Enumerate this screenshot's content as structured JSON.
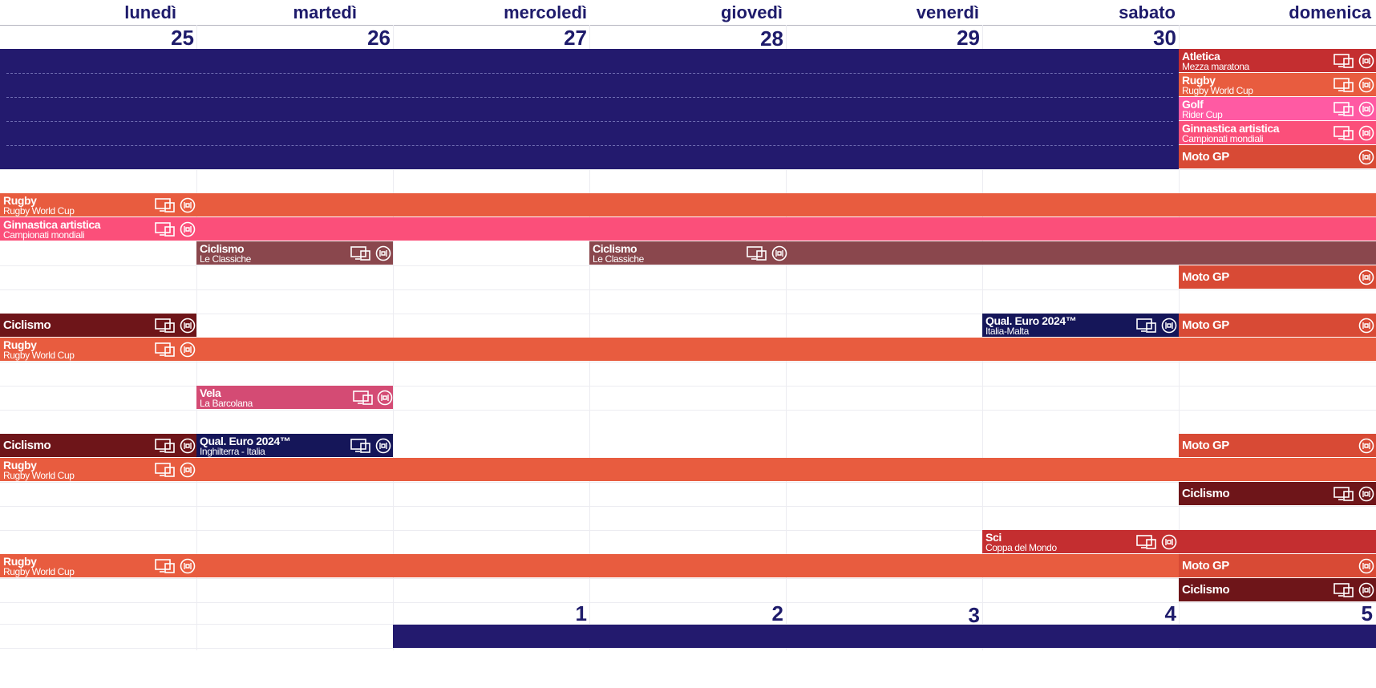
{
  "days": [
    "lunedì",
    "martedì",
    "mercoledì",
    "giovedì",
    "venerdì",
    "sabato",
    "domenica"
  ],
  "dates_week1": [
    "25",
    "26",
    "27",
    "28",
    "29",
    "30"
  ],
  "dates_week2": [
    "1",
    "2",
    "3",
    "4",
    "5"
  ],
  "events": {
    "e1": {
      "title": "Atletica",
      "subtitle": "Mezza maratona"
    },
    "e2": {
      "title": "Rugby",
      "subtitle": "Rugby World Cup"
    },
    "e3": {
      "title": "Golf",
      "subtitle": "Rider Cup"
    },
    "e4": {
      "title": "Ginnastica artistica",
      "subtitle": "Campionati mondiali"
    },
    "e5": {
      "title": "Moto GP"
    },
    "e6": {
      "title": "Rugby",
      "subtitle": "Rugby World Cup"
    },
    "e7": {
      "title": "Ginnastica artistica",
      "subtitle": "Campionati mondiali"
    },
    "e8": {
      "title": "Ciclismo",
      "subtitle": "Le Classiche"
    },
    "e9": {
      "title": "Ciclismo",
      "subtitle": "Le Classiche"
    },
    "e10": {
      "title": "Moto GP"
    },
    "e11": {
      "title": "Ciclismo"
    },
    "e12": {
      "title": "Qual. Euro 2024™",
      "subtitle": "Italia-Malta"
    },
    "e13": {
      "title": "Moto GP"
    },
    "e14": {
      "title": "Rugby",
      "subtitle": "Rugby World Cup"
    },
    "e15": {
      "title": "Vela",
      "subtitle": "La Barcolana"
    },
    "e16": {
      "title": "Ciclismo"
    },
    "e17": {
      "title": "Qual. Euro 2024™",
      "subtitle": "Inghilterra - Italia"
    },
    "e18": {
      "title": "Moto GP"
    },
    "e19": {
      "title": "Rugby",
      "subtitle": "Rugby World Cup"
    },
    "e20": {
      "title": "Ciclismo"
    },
    "e21": {
      "title": "Sci",
      "subtitle": "Coppa del Mondo"
    },
    "e22": {
      "title": "Rugby",
      "subtitle": "Rugby World Cup"
    },
    "e23": {
      "title": "Moto GP"
    },
    "e24": {
      "title": "Ciclismo"
    }
  },
  "colors": {
    "navy": "#231a6e",
    "coral": "#e85c3f",
    "pink": "#fb4f7a",
    "magenta": "#ff5aa3",
    "crimson": "#c42e30",
    "motogp": "#d84a35",
    "ciclismo": "#6e1519",
    "classiche": "#8a474d",
    "vela": "#d44b74",
    "euro": "#151659",
    "sci": "#c42e30"
  },
  "icons": [
    "tv-device-icon",
    "radio-icon"
  ]
}
